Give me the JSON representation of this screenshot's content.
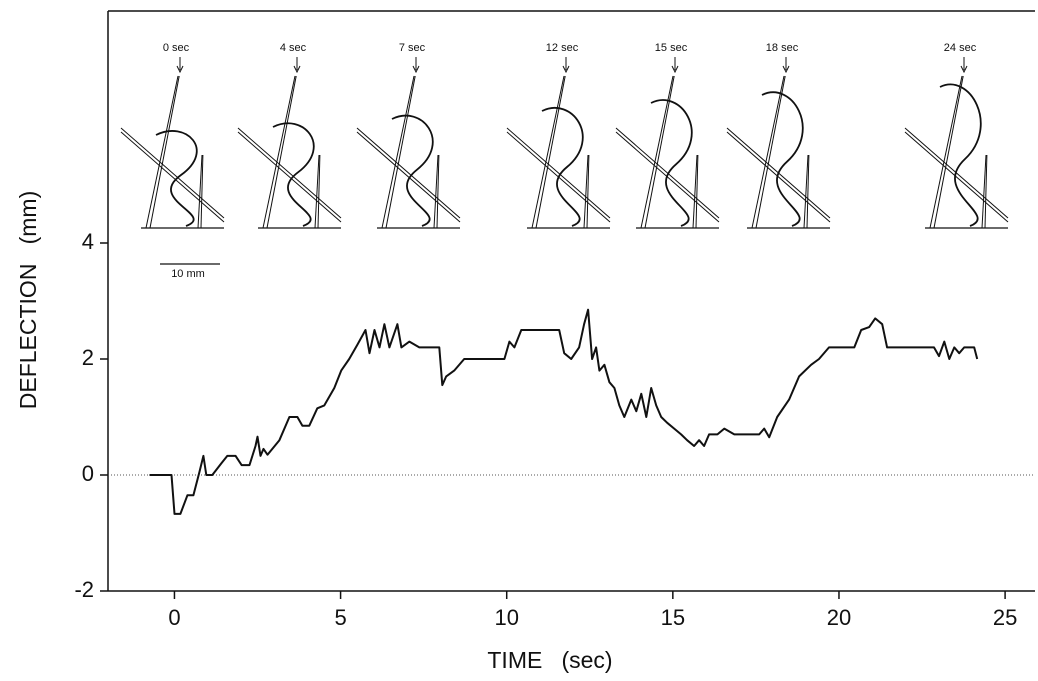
{
  "chart_data": {
    "type": "line",
    "xlabel": "TIME   (sec)",
    "ylabel": "DEFLECTION   (mm)",
    "x": [
      -0.75,
      -0.09,
      0,
      0.18,
      0.39,
      0.57,
      0.75,
      0.87,
      0.96,
      1.14,
      1.41,
      1.59,
      1.84,
      2.02,
      2.26,
      2.44,
      2.5,
      2.59,
      2.68,
      2.8,
      3.16,
      3.46,
      3.7,
      3.85,
      4.06,
      4.3,
      4.51,
      4.81,
      5.02,
      5.26,
      5.51,
      5.75,
      5.87,
      6.02,
      6.17,
      6.32,
      6.47,
      6.71,
      6.83,
      7.07,
      7.37,
      7.97,
      8.06,
      8.18,
      8.42,
      8.72,
      9.93,
      10.08,
      10.23,
      10.44,
      11.58,
      11.73,
      11.94,
      12.18,
      12.33,
      12.45,
      12.57,
      12.69,
      12.79,
      12.94,
      13.09,
      13.24,
      13.39,
      13.54,
      13.75,
      13.9,
      14.05,
      14.2,
      14.35,
      14.5,
      14.65,
      14.83,
      15.04,
      15.25,
      15.43,
      15.64,
      15.79,
      15.94,
      16.09,
      16.34,
      16.55,
      16.85,
      17.6,
      17.75,
      17.9,
      18.14,
      18.5,
      18.8,
      19.16,
      19.4,
      19.7,
      20.46,
      20.67,
      20.91,
      21.09,
      21.3,
      21.45,
      22.86,
      23.01,
      23.17,
      23.32,
      23.47,
      23.62,
      23.77,
      24.07,
      24.16
    ],
    "series": [
      {
        "color": "#111111",
        "values": [
          0,
          0,
          -0.67,
          -0.67,
          -0.35,
          -0.35,
          0.05,
          0.33,
          0,
          0,
          0.2,
          0.33,
          0.33,
          0.17,
          0.17,
          0.5,
          0.66,
          0.33,
          0.45,
          0.35,
          0.6,
          1.0,
          1.0,
          0.85,
          0.85,
          1.15,
          1.2,
          1.5,
          1.8,
          2.0,
          2.25,
          2.5,
          2.1,
          2.5,
          2.2,
          2.6,
          2.2,
          2.6,
          2.2,
          2.3,
          2.2,
          2.2,
          1.55,
          1.7,
          1.8,
          2.0,
          2.0,
          2.3,
          2.2,
          2.5,
          2.5,
          2.1,
          2.0,
          2.2,
          2.6,
          2.85,
          2.0,
          2.2,
          1.8,
          1.9,
          1.6,
          1.5,
          1.2,
          1.0,
          1.3,
          1.1,
          1.4,
          1.0,
          1.5,
          1.2,
          1.0,
          0.9,
          0.8,
          0.7,
          0.6,
          0.5,
          0.6,
          0.5,
          0.7,
          0.7,
          0.8,
          0.7,
          0.7,
          0.8,
          0.65,
          1.0,
          1.3,
          1.7,
          1.9,
          2.0,
          2.2,
          2.2,
          2.5,
          2.55,
          2.7,
          2.6,
          2.2,
          2.2,
          2.05,
          2.3,
          2.0,
          2.2,
          2.1,
          2.2,
          2.2,
          2.0
        ]
      }
    ],
    "xlim": [
      -2,
      25.9
    ],
    "xticks": [
      0,
      5,
      10,
      15,
      20,
      25
    ],
    "ylim": [
      -2,
      8
    ],
    "yticks": [
      -2,
      0,
      2,
      4
    ],
    "zero_line": true,
    "annotations": [
      "0 sec",
      "4 sec",
      "7 sec",
      "12 sec",
      "15 sec",
      "18 sec",
      "24 sec"
    ],
    "scale_bar": "10 mm"
  }
}
